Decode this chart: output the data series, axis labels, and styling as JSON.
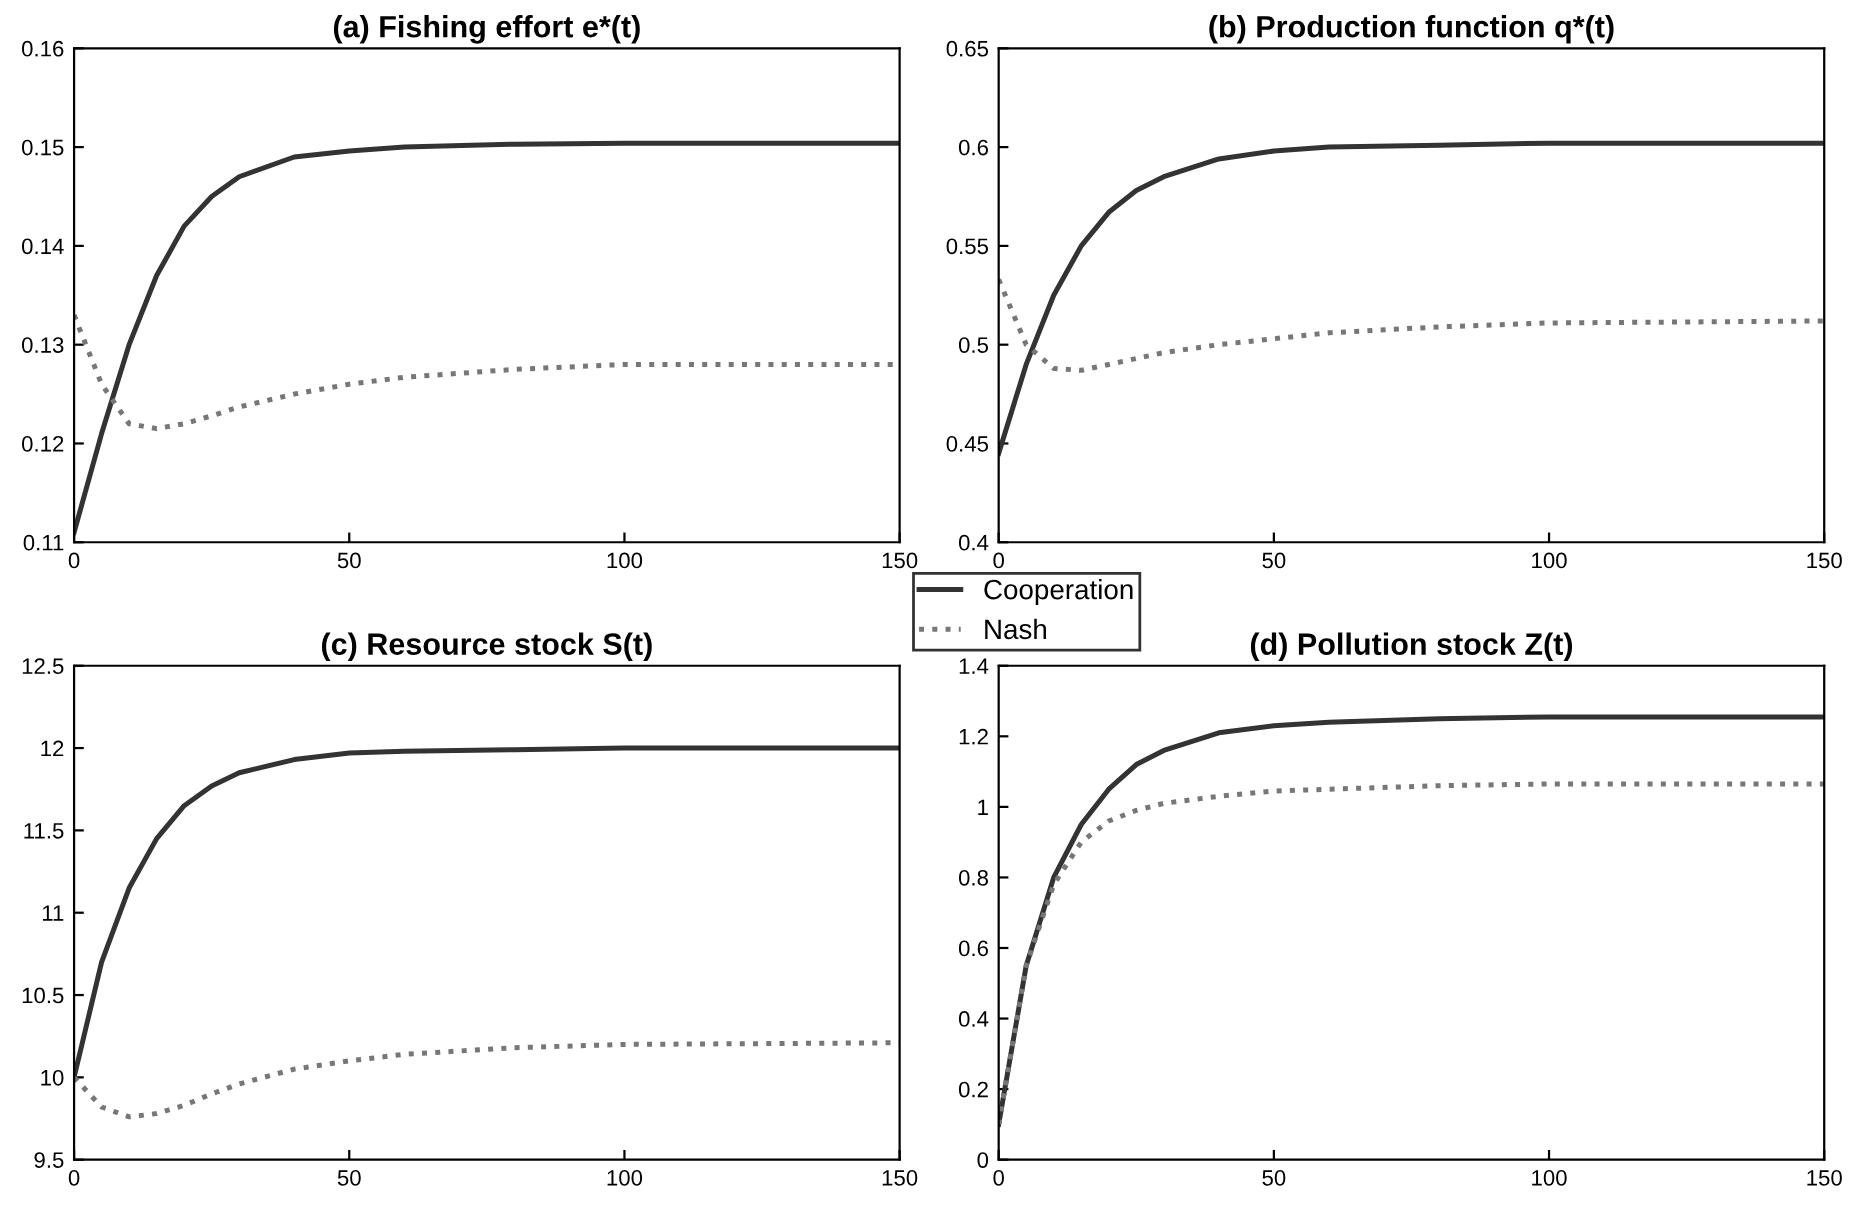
{
  "chart_data": [
    {
      "type": "line",
      "title": "(a) Fishing effort e*(t)",
      "x": [
        0,
        5,
        10,
        15,
        20,
        25,
        30,
        40,
        50,
        60,
        80,
        100,
        150
      ],
      "xlim": [
        0,
        150
      ],
      "xticks": [
        0,
        50,
        100,
        150
      ],
      "ylim": [
        0.11,
        0.16
      ],
      "yticks": [
        0.11,
        0.12,
        0.13,
        0.14,
        0.15,
        0.16
      ],
      "grid": false,
      "legend": "bottom right",
      "series": [
        {
          "name": "Cooperation",
          "color": "#333333",
          "line_style": "solid",
          "values": [
            0.111,
            0.121,
            0.13,
            0.137,
            0.142,
            0.145,
            0.147,
            0.149,
            0.1496,
            0.15,
            0.1503,
            0.1504,
            0.1504
          ]
        },
        {
          "name": "Nash",
          "color": "#777777",
          "line_style": "dotted",
          "values": [
            0.133,
            0.126,
            0.122,
            0.1215,
            0.122,
            0.1228,
            0.1237,
            0.125,
            0.126,
            0.1267,
            0.1275,
            0.128,
            0.128
          ]
        }
      ]
    },
    {
      "type": "line",
      "title": "(b) Production function q*(t)",
      "x": [
        0,
        5,
        10,
        15,
        20,
        25,
        30,
        40,
        50,
        60,
        80,
        100,
        150
      ],
      "xlim": [
        0,
        150
      ],
      "xticks": [
        0,
        50,
        100,
        150
      ],
      "ylim": [
        0.4,
        0.65
      ],
      "yticks": [
        0.4,
        0.45,
        0.5,
        0.55,
        0.6,
        0.65
      ],
      "grid": false,
      "series": [
        {
          "color": "#333333",
          "line_style": "solid",
          "values": [
            0.445,
            0.49,
            0.525,
            0.55,
            0.567,
            0.578,
            0.585,
            0.594,
            0.598,
            0.6,
            0.601,
            0.602,
            0.602
          ]
        },
        {
          "color": "#777777",
          "line_style": "dotted",
          "values": [
            0.533,
            0.5,
            0.488,
            0.487,
            0.49,
            0.493,
            0.496,
            0.5,
            0.503,
            0.506,
            0.509,
            0.511,
            0.512
          ]
        }
      ]
    },
    {
      "type": "line",
      "title": "(c) Resource stock S(t)",
      "x": [
        0,
        5,
        10,
        15,
        20,
        25,
        30,
        40,
        50,
        60,
        80,
        100,
        150
      ],
      "xlim": [
        0,
        150
      ],
      "xticks": [
        0,
        50,
        100,
        150
      ],
      "ylim": [
        9.5,
        12.5
      ],
      "yticks": [
        9.5,
        10,
        10.5,
        11,
        11.5,
        12,
        12.5
      ],
      "grid": false,
      "series": [
        {
          "color": "#333333",
          "line_style": "solid",
          "values": [
            10.0,
            10.7,
            11.15,
            11.45,
            11.65,
            11.77,
            11.85,
            11.93,
            11.97,
            11.98,
            11.99,
            12.0,
            12.0
          ]
        },
        {
          "color": "#777777",
          "line_style": "dotted",
          "values": [
            10.0,
            9.82,
            9.76,
            9.78,
            9.83,
            9.9,
            9.96,
            10.05,
            10.1,
            10.14,
            10.18,
            10.2,
            10.21
          ]
        }
      ]
    },
    {
      "type": "line",
      "title": "(d) Pollution stock Z(t)",
      "x": [
        0,
        5,
        10,
        15,
        20,
        25,
        30,
        40,
        50,
        60,
        80,
        100,
        150
      ],
      "xlim": [
        0,
        150
      ],
      "xticks": [
        0,
        50,
        100,
        150
      ],
      "ylim": [
        0,
        1.4
      ],
      "yticks": [
        0,
        0.2,
        0.4,
        0.6,
        0.8,
        1,
        1.2,
        1.4
      ],
      "grid": false,
      "series": [
        {
          "color": "#333333",
          "line_style": "solid",
          "values": [
            0.1,
            0.55,
            0.8,
            0.95,
            1.05,
            1.12,
            1.16,
            1.21,
            1.23,
            1.24,
            1.25,
            1.255,
            1.255
          ]
        },
        {
          "color": "#777777",
          "line_style": "dotted",
          "values": [
            0.1,
            0.55,
            0.78,
            0.9,
            0.96,
            0.99,
            1.01,
            1.03,
            1.045,
            1.05,
            1.06,
            1.065,
            1.065
          ]
        }
      ]
    }
  ]
}
